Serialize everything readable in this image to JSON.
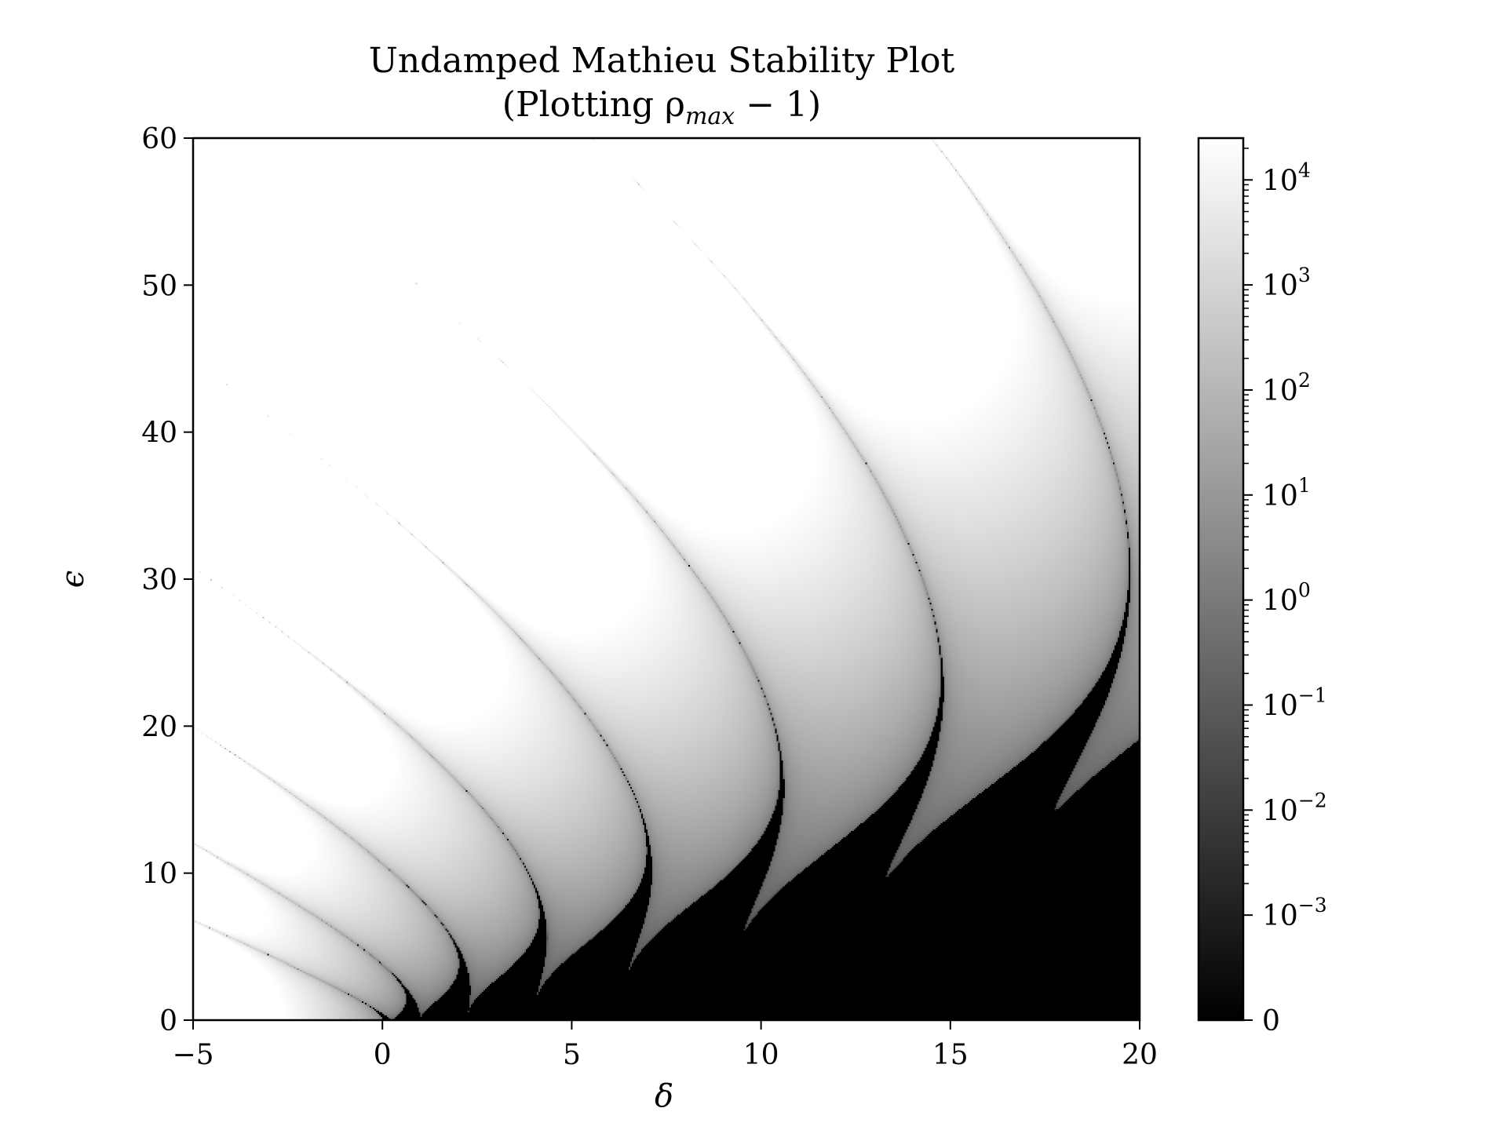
{
  "chart_data": {
    "type": "heatmap",
    "title": "Undamped Mathieu Stability Plot",
    "subtitle": "(Plotting ρ",
    "subtitle_sub": "max",
    "subtitle_tail": " − 1)",
    "xlabel": "δ",
    "ylabel": "ϵ",
    "xlim": [
      -5,
      20
    ],
    "ylim": [
      0,
      60
    ],
    "x_ticks": [
      -5,
      0,
      5,
      10,
      15,
      20
    ],
    "x_tick_labels": [
      "−5",
      "0",
      "5",
      "10",
      "15",
      "20"
    ],
    "y_ticks": [
      0,
      10,
      20,
      30,
      40,
      50,
      60
    ],
    "y_tick_labels": [
      "0",
      "10",
      "20",
      "30",
      "40",
      "50",
      "60"
    ],
    "colorscale": "gray",
    "colorbar": {
      "scale": "symlog",
      "linthresh": 0.001,
      "vmin": 0,
      "vmax": 25000,
      "tick_values": [
        0,
        0.001,
        0.01,
        0.1,
        1,
        10,
        100,
        1000,
        10000
      ],
      "tick_bases": [
        "0",
        "10",
        "10",
        "10",
        "10",
        "10",
        "10",
        "10",
        "10"
      ],
      "tick_exponents": [
        "",
        "−3",
        "−2",
        "−1",
        "0",
        "1",
        "2",
        "3",
        "4"
      ]
    },
    "stable_region_value": 0,
    "stability_tongues": [
      {
        "tip_delta": 0,
        "tip_epsilon": 0
      },
      {
        "tip_delta": 1,
        "tip_epsilon": 0
      },
      {
        "tip_delta": 4,
        "tip_epsilon": 0
      },
      {
        "tip_delta": 9,
        "tip_epsilon": 0
      },
      {
        "tip_delta": 16,
        "tip_epsilon": 0
      }
    ]
  }
}
